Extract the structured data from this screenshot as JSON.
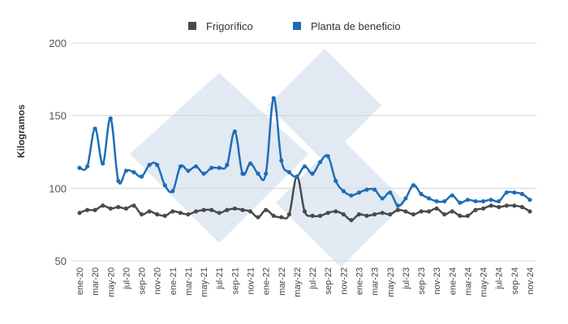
{
  "chart_data": {
    "type": "line",
    "title": "",
    "xlabel": "",
    "ylabel": "Kilogramos",
    "ylim": [
      50,
      200
    ],
    "yticks": [
      "50",
      "100",
      "150",
      "200"
    ],
    "grid": true,
    "legend_position": "top",
    "x": [
      "ene-20",
      "feb-20",
      "mar-20",
      "abr-20",
      "may-20",
      "jun-20",
      "jul-20",
      "ago-20",
      "sep-20",
      "oct-20",
      "nov-20",
      "dic-20",
      "ene-21",
      "feb-21",
      "mar-21",
      "abr-21",
      "may-21",
      "jun-21",
      "jul-21",
      "ago-21",
      "sep-21",
      "oct-21",
      "nov-21",
      "dic-21",
      "ene-22",
      "feb-22",
      "mar-22",
      "abr-22",
      "may-22",
      "jun-22",
      "jul-22",
      "ago-22",
      "sep-22",
      "oct-22",
      "nov-22",
      "dic-22",
      "ene-23",
      "feb-23",
      "mar-23",
      "abr-23",
      "may-23",
      "jun-23",
      "jul-23",
      "ago-23",
      "sep-23",
      "oct-23",
      "nov-23",
      "dic-23",
      "ene-24",
      "feb-24",
      "mar-24",
      "abr-24",
      "may-24",
      "jun-24",
      "jul-24",
      "ago-24",
      "sep-24",
      "oct-24",
      "nov-24"
    ],
    "series": [
      {
        "name": "Frigorífico",
        "color": "#4a4a4d",
        "values": [
          83,
          85,
          85,
          88,
          86,
          87,
          86,
          88,
          82,
          84,
          82,
          81,
          84,
          83,
          82,
          84,
          85,
          85,
          83,
          85,
          86,
          85,
          84,
          80,
          85,
          81,
          80,
          82,
          108,
          84,
          81,
          81,
          83,
          84,
          82,
          78,
          82,
          81,
          82,
          83,
          82,
          85,
          84,
          82,
          84,
          84,
          86,
          82,
          84,
          81,
          81,
          85,
          86,
          88,
          87,
          88,
          88,
          87,
          84
        ]
      },
      {
        "name": "Planta de beneficio",
        "color": "#1f6db5",
        "values": [
          114,
          115,
          141,
          117,
          148,
          105,
          112,
          111,
          108,
          116,
          116,
          102,
          98,
          115,
          112,
          115,
          110,
          114,
          114,
          116,
          139,
          110,
          117,
          110,
          110,
          162,
          119,
          111,
          108,
          115,
          110,
          118,
          122,
          105,
          98,
          95,
          97,
          99,
          99,
          93,
          97,
          88,
          93,
          102,
          96,
          93,
          91,
          91,
          95,
          90,
          92,
          91,
          91,
          92,
          91,
          97,
          97,
          96,
          92
        ]
      }
    ]
  }
}
